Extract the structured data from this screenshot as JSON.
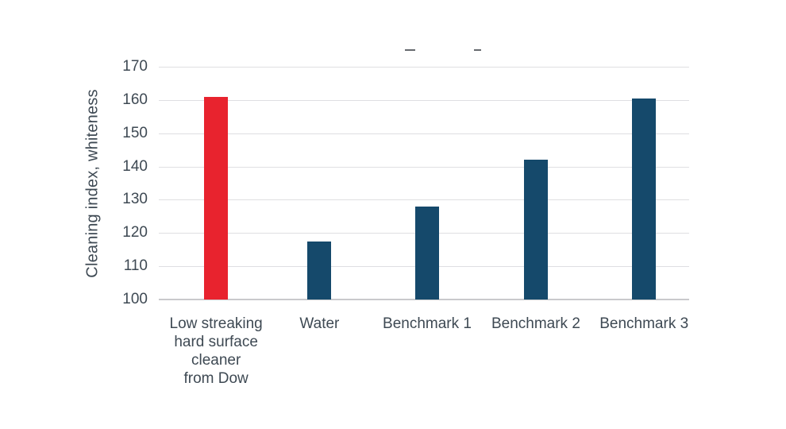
{
  "chart_data": {
    "type": "bar",
    "title": "",
    "ylabel": "Cleaning index, whiteness",
    "xlabel": "",
    "ylim": [
      100,
      170
    ],
    "ytick_step": 10,
    "yticks": [
      170,
      160,
      150,
      140,
      130,
      120,
      110,
      100
    ],
    "categories": [
      [
        "Low streaking",
        "hard surface",
        "cleaner",
        "from Dow"
      ],
      [
        "Water"
      ],
      [
        "Benchmark 1"
      ],
      [
        "Benchmark 2"
      ],
      [
        "Benchmark 3"
      ]
    ],
    "values": [
      161,
      117.5,
      128,
      142,
      160.5
    ],
    "bar_colors": [
      "#e8232e",
      "#15496b",
      "#15496b",
      "#15496b",
      "#15496b"
    ],
    "colors": {
      "highlight_bar": "#e8232e",
      "default_bar": "#15496b",
      "text": "#3e4953",
      "gridline": "#dfdfe2",
      "baseline": "#c9c9cc",
      "background": "#ffffff"
    },
    "grid": true,
    "legend": false
  }
}
